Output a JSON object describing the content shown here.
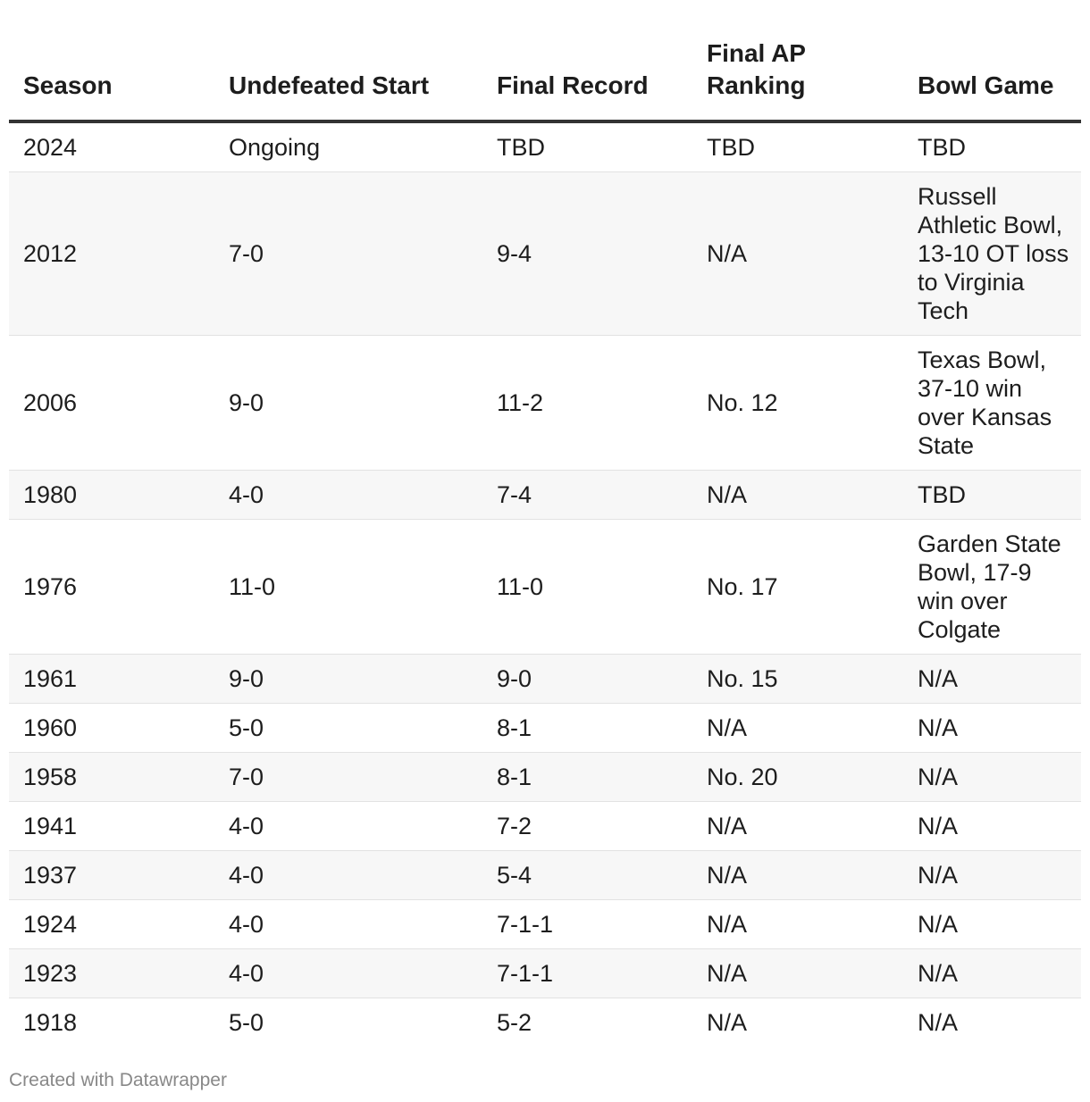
{
  "chart_data": {
    "type": "table",
    "columns": [
      "Season",
      "Undefeated Start",
      "Final Record",
      "Final AP Ranking",
      "Bowl Game"
    ],
    "rows": [
      [
        "2024",
        "Ongoing",
        "TBD",
        "TBD",
        "TBD"
      ],
      [
        "2012",
        "7-0",
        "9-4",
        "N/A",
        "Russell Athletic Bowl, 13-10 OT loss to Virginia Tech"
      ],
      [
        "2006",
        "9-0",
        "11-2",
        "No. 12",
        "Texas Bowl, 37-10 win over Kansas State"
      ],
      [
        "1980",
        "4-0",
        "7-4",
        "N/A",
        "TBD"
      ],
      [
        "1976",
        "11-0",
        "11-0",
        "No. 17",
        "Garden State Bowl, 17-9 win over Colgate"
      ],
      [
        "1961",
        "9-0",
        "9-0",
        "No. 15",
        "N/A"
      ],
      [
        "1960",
        "5-0",
        "8-1",
        "N/A",
        "N/A"
      ],
      [
        "1958",
        "7-0",
        "8-1",
        "No. 20",
        "N/A"
      ],
      [
        "1941",
        "4-0",
        "7-2",
        "N/A",
        "N/A"
      ],
      [
        "1937",
        "4-0",
        "5-4",
        "N/A",
        "N/A"
      ],
      [
        "1924",
        "4-0",
        "7-1-1",
        "N/A",
        "N/A"
      ],
      [
        "1923",
        "4-0",
        "7-1-1",
        "N/A",
        "N/A"
      ],
      [
        "1918",
        "5-0",
        "5-2",
        "N/A",
        "N/A"
      ]
    ]
  },
  "footer": {
    "credit": "Created with Datawrapper"
  }
}
